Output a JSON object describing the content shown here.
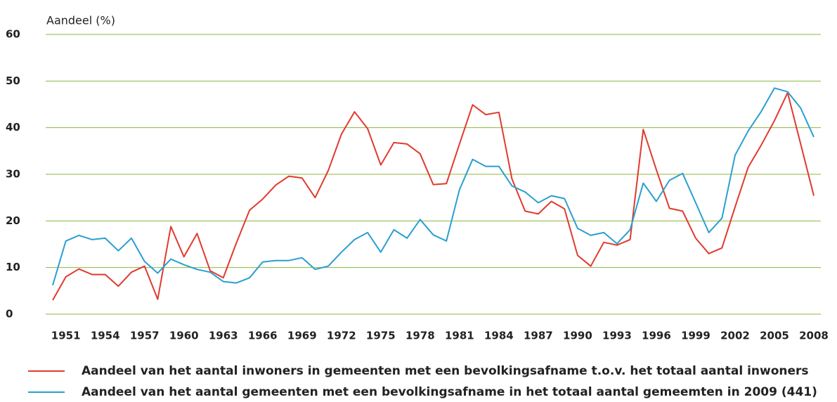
{
  "chart_data": {
    "type": "line",
    "y_label": "Aandeel (%)",
    "x": [
      1950,
      1951,
      1952,
      1953,
      1954,
      1955,
      1956,
      1957,
      1958,
      1959,
      1960,
      1961,
      1962,
      1963,
      1964,
      1965,
      1966,
      1967,
      1968,
      1969,
      1970,
      1971,
      1972,
      1973,
      1974,
      1975,
      1976,
      1977,
      1978,
      1979,
      1980,
      1981,
      1982,
      1983,
      1984,
      1985,
      1986,
      1987,
      1988,
      1989,
      1990,
      1991,
      1992,
      1993,
      1994,
      1995,
      1996,
      1997,
      1998,
      1999,
      2000,
      2001,
      2002,
      2003,
      2004,
      2005,
      2006,
      2007,
      2008
    ],
    "xlim": [
      1950,
      2008
    ],
    "xticks": [
      1951,
      1954,
      1957,
      1960,
      1963,
      1966,
      1969,
      1972,
      1975,
      1978,
      1981,
      1984,
      1987,
      1990,
      1993,
      1996,
      1999,
      2002,
      2005,
      2008
    ],
    "ylim": [
      0,
      60
    ],
    "yticks": [
      0,
      10,
      20,
      30,
      40,
      50,
      60
    ],
    "grid": true,
    "grid_color": "#8cb73e",
    "legend": "bottom",
    "series": [
      {
        "name": "Aandeel van het aantal inwoners in gemeenten met een bevolkingsafname t.o.v. het totaal aantal inwoners",
        "color": "#e03a2f",
        "values": [
          3,
          8,
          9.7,
          8.5,
          8.5,
          6,
          9,
          10.3,
          3.2,
          18.8,
          12.3,
          17.3,
          9.3,
          7.8,
          15.3,
          22.3,
          24.7,
          27.7,
          29.6,
          29.2,
          25,
          30.8,
          38.6,
          43.4,
          39.8,
          32,
          36.8,
          36.5,
          34.4,
          27.8,
          28,
          36.5,
          44.9,
          42.8,
          43.3,
          29,
          22.1,
          21.5,
          24.2,
          22.6,
          12.6,
          10.3,
          15.4,
          14.8,
          16,
          39.6,
          31,
          22.7,
          22.1,
          16.3,
          13,
          14.2,
          23,
          31.5,
          36.3,
          41.5,
          47.5,
          36.5,
          25.4
        ]
      },
      {
        "name": "Aandeel van het aantal gemeenten met een bevolkingsafname in het totaal aantal gemeemten in 2009 (441)",
        "color": "#2a9fd0",
        "values": [
          6.2,
          15.7,
          16.9,
          16,
          16.3,
          13.6,
          16.3,
          11.3,
          8.8,
          11.8,
          10.6,
          9.6,
          9,
          7,
          6.7,
          7.8,
          11.2,
          11.5,
          11.5,
          12.1,
          9.6,
          10.3,
          13.3,
          16,
          17.5,
          13.3,
          18.1,
          16.3,
          20.3,
          17,
          15.7,
          26.7,
          33.2,
          31.7,
          31.7,
          27.5,
          26.2,
          23.9,
          25.4,
          24.8,
          18.4,
          16.9,
          17.5,
          15.1,
          18.1,
          28.1,
          24.2,
          28.7,
          30.2,
          23.9,
          17.5,
          20.6,
          34.1,
          39.3,
          43.5,
          48.5,
          47.7,
          44.2,
          38
        ]
      }
    ]
  }
}
